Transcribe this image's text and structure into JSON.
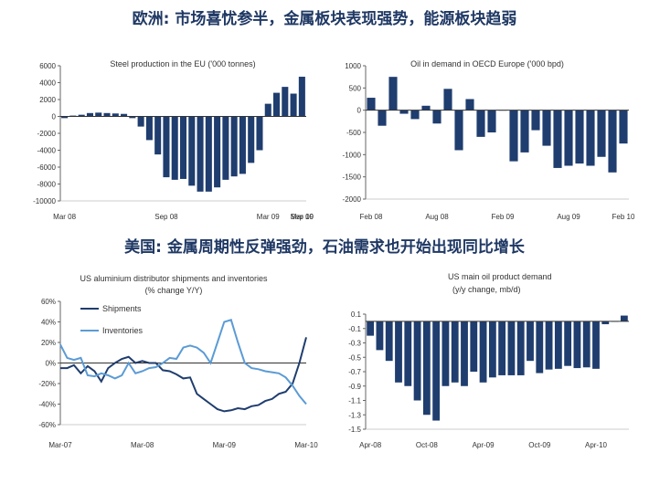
{
  "headings": {
    "top": "欧洲: 市场喜忧参半，金属板块表现强势，能源板块趋弱",
    "bottom": "美国: 金属周期性反弹强劲，石油需求也开始出现同比增长"
  },
  "colors": {
    "dark_bar": "#1f3d6e",
    "light_line": "#5b9bd5",
    "dark_line": "#1f3d6e"
  },
  "chart_data": [
    {
      "type": "bar",
      "title": "Steel production in the EU ('000 tonnes)",
      "ylim": [
        -10000,
        6000
      ],
      "y_ticks": [
        6000,
        4000,
        2000,
        0,
        -2000,
        -4000,
        -6000,
        -8000,
        -10000
      ],
      "x_tick_labels": [
        "Mar 08",
        "Sep 08",
        "Mar 09",
        "Sep 09",
        "Mar 10"
      ],
      "x_tick_index": [
        0,
        12,
        24,
        36,
        48
      ],
      "values": [
        -200,
        100,
        200,
        400,
        450,
        400,
        350,
        300,
        -200,
        -1200,
        -2800,
        -4500,
        -7200,
        -7500,
        -7400,
        -8200,
        -8900,
        -8900,
        -8400,
        -7500,
        -7100,
        -6800,
        -5500,
        -4000,
        1500,
        2800,
        3500,
        2700,
        4700
      ]
    },
    {
      "type": "bar",
      "title": "Oil in demand in OECD Europe ('000 bpd)",
      "ylim": [
        -2000,
        1000
      ],
      "y_ticks": [
        1000,
        500,
        0,
        -500,
        -1000,
        -1500,
        -2000
      ],
      "x_tick_labels": [
        "Feb 08",
        "Aug 08",
        "Feb 09",
        "Aug 09",
        "Feb 10"
      ],
      "x_tick_index": [
        0,
        6,
        12,
        18,
        24
      ],
      "values": [
        280,
        -350,
        750,
        -80,
        -200,
        100,
        -300,
        480,
        -900,
        250,
        -600,
        -500,
        0,
        -1150,
        -950,
        -450,
        -800,
        -1300,
        -1250,
        -1200,
        -1250,
        -1050,
        -1400,
        -750
      ]
    },
    {
      "type": "line",
      "title": "US aluminium distributor shipments and inventories",
      "subtitle": "(% change Y/Y)",
      "ylim": [
        -60,
        60
      ],
      "y_ticks": [
        "60%",
        "40%",
        "20%",
        "0%",
        "-20%",
        "-40%",
        "-60%"
      ],
      "y_tick_values": [
        60,
        40,
        20,
        0,
        -20,
        -40,
        -60
      ],
      "x_tick_labels": [
        "Mar-07",
        "Mar-08",
        "Mar-09",
        "Mar-10"
      ],
      "x_tick_index": [
        0,
        12,
        24,
        36
      ],
      "series": [
        {
          "name": "Shipments",
          "color": "#1f3d6e",
          "values": [
            -5,
            -5,
            -2,
            -10,
            -3,
            -8,
            -18,
            -5,
            0,
            4,
            6,
            0,
            2,
            0,
            0,
            -7,
            -8,
            -11,
            -15,
            -14,
            -30,
            -35,
            -40,
            -45,
            -47,
            -46,
            -44,
            -45,
            -42,
            -41,
            -37,
            -35,
            -30,
            -28,
            -20,
            0,
            25
          ]
        },
        {
          "name": "Inventories",
          "color": "#5b9bd5",
          "values": [
            18,
            5,
            3,
            5,
            -12,
            -13,
            -10,
            -12,
            -15,
            -12,
            0,
            -10,
            -8,
            -5,
            -4,
            0,
            5,
            4,
            15,
            17,
            15,
            10,
            0,
            20,
            40,
            42,
            20,
            0,
            -5,
            -6,
            -8,
            -9,
            -10,
            -14,
            -22,
            -32,
            -40
          ]
        }
      ]
    },
    {
      "type": "bar",
      "title": "US main oil product demand",
      "subtitle": "(y/y change, mb/d)",
      "ylim": [
        -1.5,
        0.1
      ],
      "y_ticks": [
        "0.1",
        "-0.1",
        "-0.3",
        "-0.5",
        "-0.7",
        "-0.9",
        "-1.1",
        "-1.3",
        "-1.5"
      ],
      "y_tick_values": [
        0.1,
        -0.1,
        -0.3,
        -0.5,
        -0.7,
        -0.9,
        -1.1,
        -1.3,
        -1.5
      ],
      "x_tick_labels": [
        "Apr-08",
        "Oct-08",
        "Apr-09",
        "Oct-09",
        "Apr-10"
      ],
      "x_tick_index": [
        0,
        6,
        12,
        18,
        24
      ],
      "values": [
        -0.2,
        -0.4,
        -0.55,
        -0.85,
        -0.9,
        -1.1,
        -1.3,
        -1.38,
        -0.9,
        -0.85,
        -0.9,
        -0.7,
        -0.85,
        -0.78,
        -0.75,
        -0.75,
        -0.75,
        -0.55,
        -0.72,
        -0.67,
        -0.66,
        -0.62,
        -0.65,
        -0.64,
        -0.66,
        -0.04,
        0.0,
        0.08
      ]
    }
  ]
}
